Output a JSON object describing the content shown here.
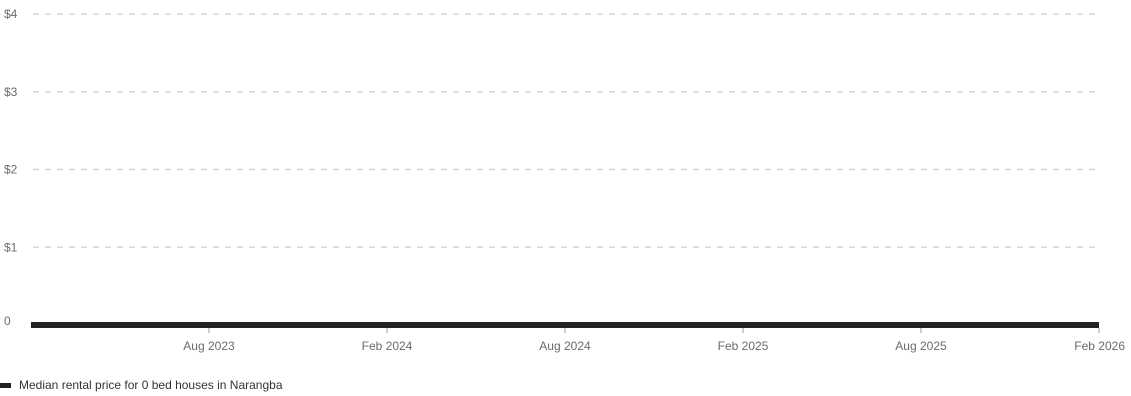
{
  "chart_data": {
    "type": "line",
    "x": [
      "2023-02",
      "2023-08",
      "2024-02",
      "2024-08",
      "2025-02",
      "2025-08",
      "2026-02"
    ],
    "x_tick_labels": [
      "Aug 2023",
      "Feb 2024",
      "Aug 2024",
      "Feb 2025",
      "Aug 2025",
      "Feb 2026"
    ],
    "y_tick_labels": [
      "0",
      "$1",
      "$2",
      "$3",
      "$4"
    ],
    "ylim": [
      0,
      4
    ],
    "grid": true,
    "legend_placement": "bottom-left",
    "series": [
      {
        "name": "Median rental price for 0 bed houses in Narangba",
        "values": [
          0,
          0,
          0,
          0,
          0,
          0,
          0
        ],
        "color": "#222222"
      }
    ]
  }
}
